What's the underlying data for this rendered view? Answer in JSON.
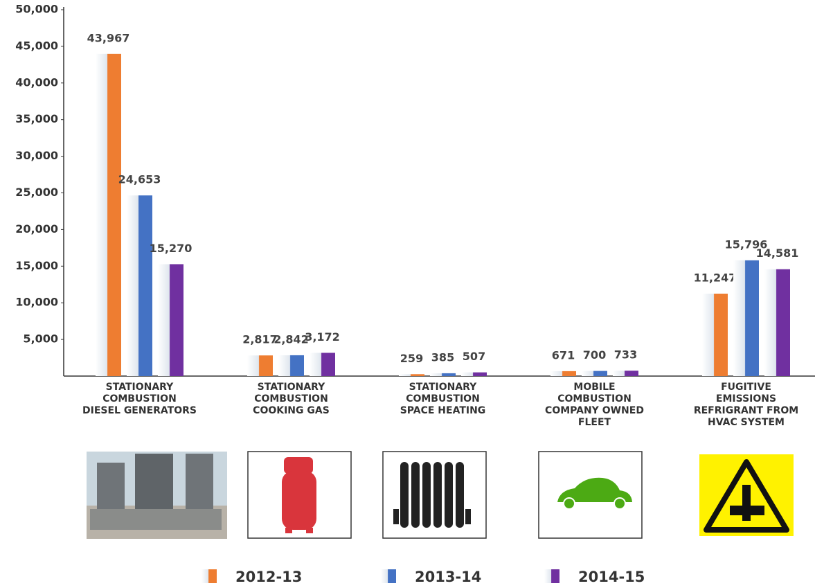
{
  "chart_data": {
    "type": "bar",
    "categories": [
      "STATIONARY\nCOMBUSTION\nDIESEL GENERATORS",
      "STATIONARY\nCOMBUSTION\nCOOKING GAS",
      "STATIONARY\nCOMBUSTION\nSPACE HEATING",
      "MOBILE\nCOMBUSTION\nCOMPANY OWNED\nFLEET",
      "FUGITIVE\nEMISSIONS\nREFRIGRANT FROM\nHVAC SYSTEM"
    ],
    "series": [
      {
        "name": "2012-13",
        "color": "#ee7d31",
        "values": [
          43967,
          2817,
          259,
          671,
          11247
        ],
        "value_labels": [
          "43,967",
          "2,817",
          "259",
          "671",
          "11,247"
        ]
      },
      {
        "name": "2013-14",
        "color": "#4472c4",
        "values": [
          24653,
          2842,
          385,
          700,
          15796
        ],
        "value_labels": [
          "24,653",
          "2,842",
          "385",
          "700",
          "15,796"
        ]
      },
      {
        "name": "2014-15",
        "color": "#7030a0",
        "values": [
          15270,
          3172,
          507,
          733,
          14581
        ],
        "value_labels": [
          "15,270",
          "3,172",
          "507",
          "733",
          "14,581"
        ]
      }
    ],
    "ylim": [
      0,
      50000
    ],
    "yticks": [
      {
        "value": 5000,
        "label": "5,000"
      },
      {
        "value": 10000,
        "label": "10,000"
      },
      {
        "value": 15000,
        "label": "15,000"
      },
      {
        "value": 20000,
        "label": "20,000"
      },
      {
        "value": 25000,
        "label": "25,000"
      },
      {
        "value": 30000,
        "label": "30,000"
      },
      {
        "value": 35000,
        "label": "35,000"
      },
      {
        "value": 40000,
        "label": "40,000"
      },
      {
        "value": 45000,
        "label": "45,000"
      },
      {
        "value": 50000,
        "label": "50,000"
      }
    ],
    "grid": false,
    "legend": "bottom"
  }
}
